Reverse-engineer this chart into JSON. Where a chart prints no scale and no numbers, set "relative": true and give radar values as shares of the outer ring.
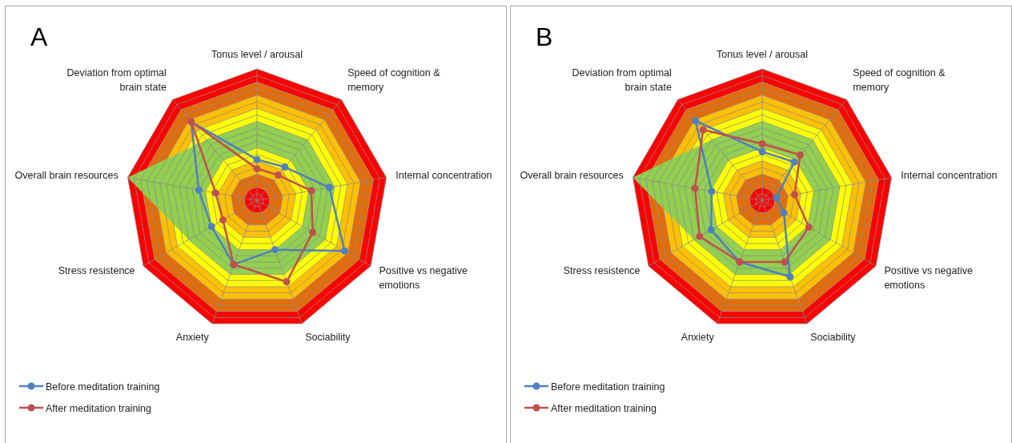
{
  "chart_data": [
    {
      "type": "radar",
      "title": "A",
      "relative": true,
      "grid": true,
      "legend": "bottom left",
      "marker": "circle",
      "line_style": "solid",
      "categories": [
        "Tonus level / arousal",
        "Speed of cognition & memory",
        "Internal concentration",
        "Positive vs negative emotions",
        "Sociability",
        "Anxiety",
        "Stress resistence",
        "Overall brain resources",
        "Deviation from optimal brain state"
      ],
      "series": [
        {
          "name": "Before meditation training",
          "color": "#4f81bd",
          "values": [
            0.31,
            0.33,
            0.56,
            0.77,
            0.4,
            0.52,
            0.4,
            0.45,
            0.78
          ]
        },
        {
          "name": "After meditation training",
          "color": "#c0504d",
          "values": [
            0.24,
            0.25,
            0.42,
            0.49,
            0.66,
            0.52,
            0.3,
            0.32,
            0.78
          ]
        }
      ]
    },
    {
      "type": "radar",
      "title": "B",
      "relative": true,
      "grid": true,
      "legend": "bottom left",
      "marker": "circle",
      "line_style": "solid",
      "categories": [
        "Tonus level / arousal",
        "Speed of cognition & memory",
        "Internal concentration",
        "Positive vs negative emotions",
        "Sociability",
        "Anxiety",
        "Stress resistence",
        "Overall brain resources",
        "Deviation from optimal brain state"
      ],
      "series": [
        {
          "name": "Before meditation training",
          "color": "#4f81bd",
          "values": [
            0.37,
            0.38,
            0.11,
            0.19,
            0.62,
            0.5,
            0.45,
            0.39,
            0.79
          ]
        },
        {
          "name": "After meditation training",
          "color": "#c0504d",
          "values": [
            0.43,
            0.45,
            0.25,
            0.41,
            0.5,
            0.5,
            0.55,
            0.52,
            0.7
          ]
        }
      ]
    }
  ]
}
